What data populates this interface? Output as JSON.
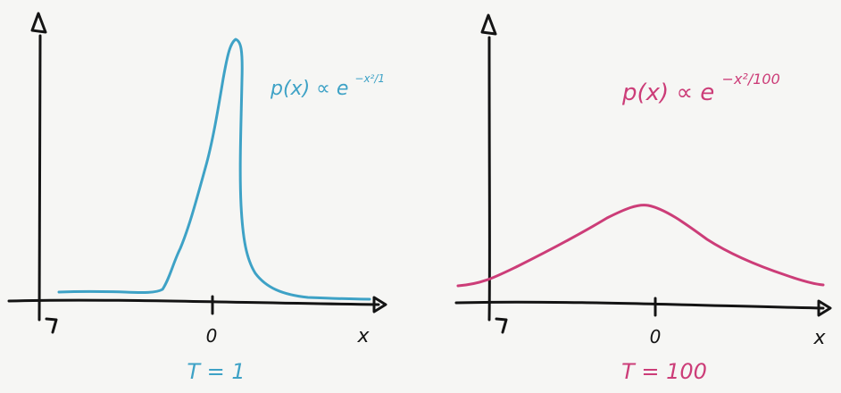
{
  "panels": [
    {
      "id": "left",
      "color": "#3ea2c6",
      "formula": {
        "base": "p(x) ∝ e",
        "exponent": "−x²/1"
      },
      "x_axis_label": "x",
      "origin_label": "0",
      "temperature_label": "T = 1"
    },
    {
      "id": "right",
      "color": "#cc3d78",
      "formula": {
        "base": "p(x) ∝ e",
        "exponent": "−x²/100"
      },
      "x_axis_label": "x",
      "origin_label": "0",
      "temperature_label": "T = 100"
    }
  ]
}
